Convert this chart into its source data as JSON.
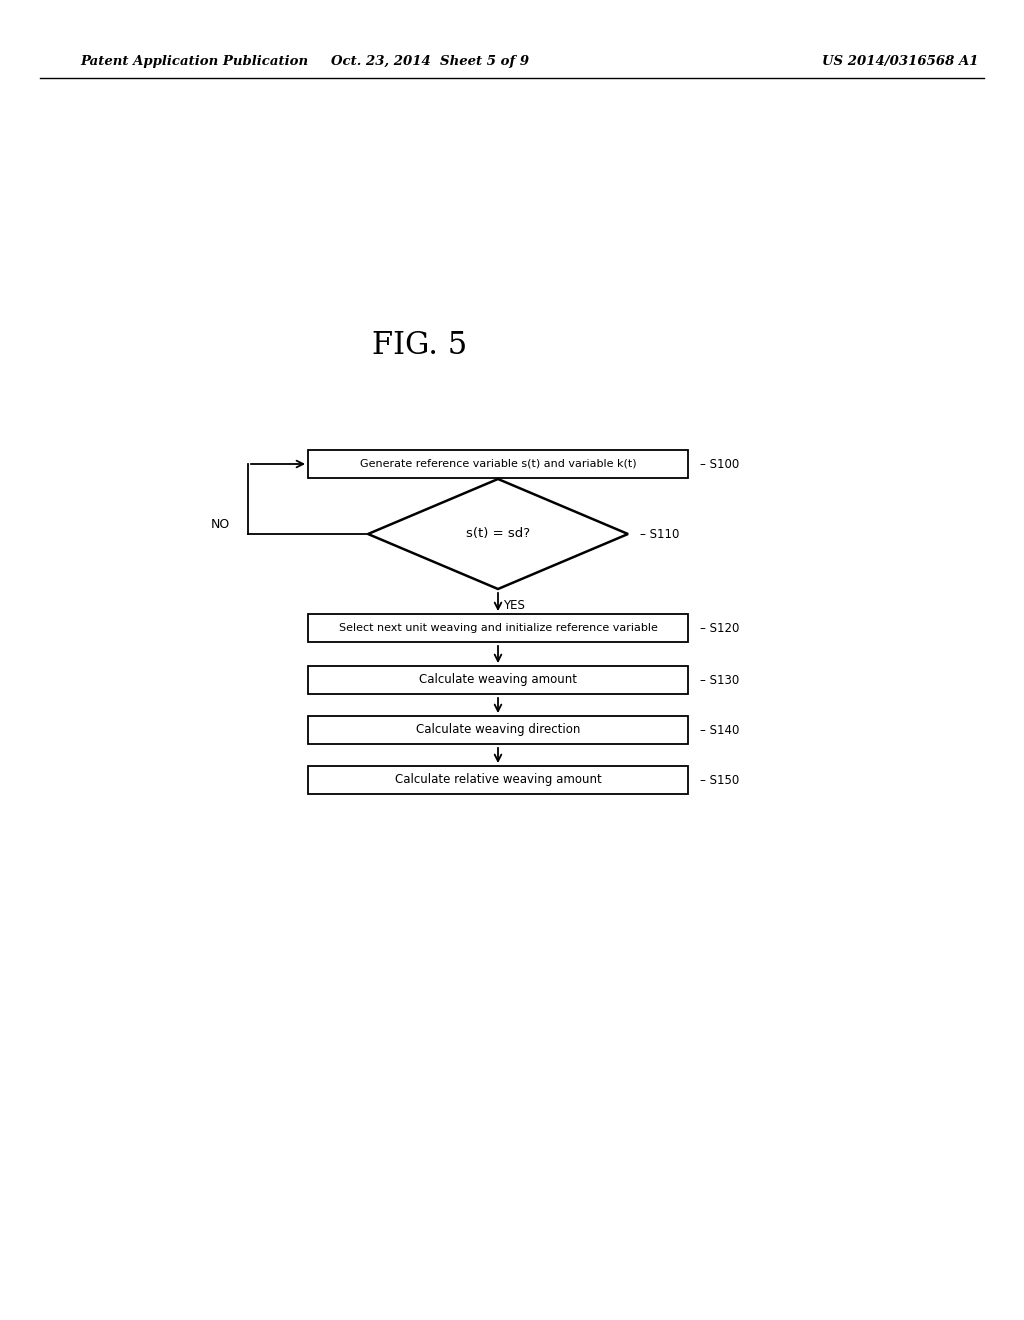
{
  "bg_color": "#ffffff",
  "header_left": "Patent Application Publication",
  "header_center": "Oct. 23, 2014  Sheet 5 of 9",
  "header_right": "US 2014/0316568 A1",
  "fig_label": "FIG. 5",
  "s100_label": "Generate reference variable s(t) and variable k(t)",
  "s100_step": "S100",
  "s110_label": "s(t) = sd?",
  "s110_step": "S110",
  "s120_label": "Select next unit weaving and initialize reference variable",
  "s120_step": "S120",
  "s130_label": "Calculate weaving amount",
  "s130_step": "S130",
  "s140_label": "Calculate weaving direction",
  "s140_step": "S140",
  "s150_label": "Calculate relative weaving amount",
  "s150_step": "S150",
  "no_label": "NO",
  "yes_label": "YES"
}
